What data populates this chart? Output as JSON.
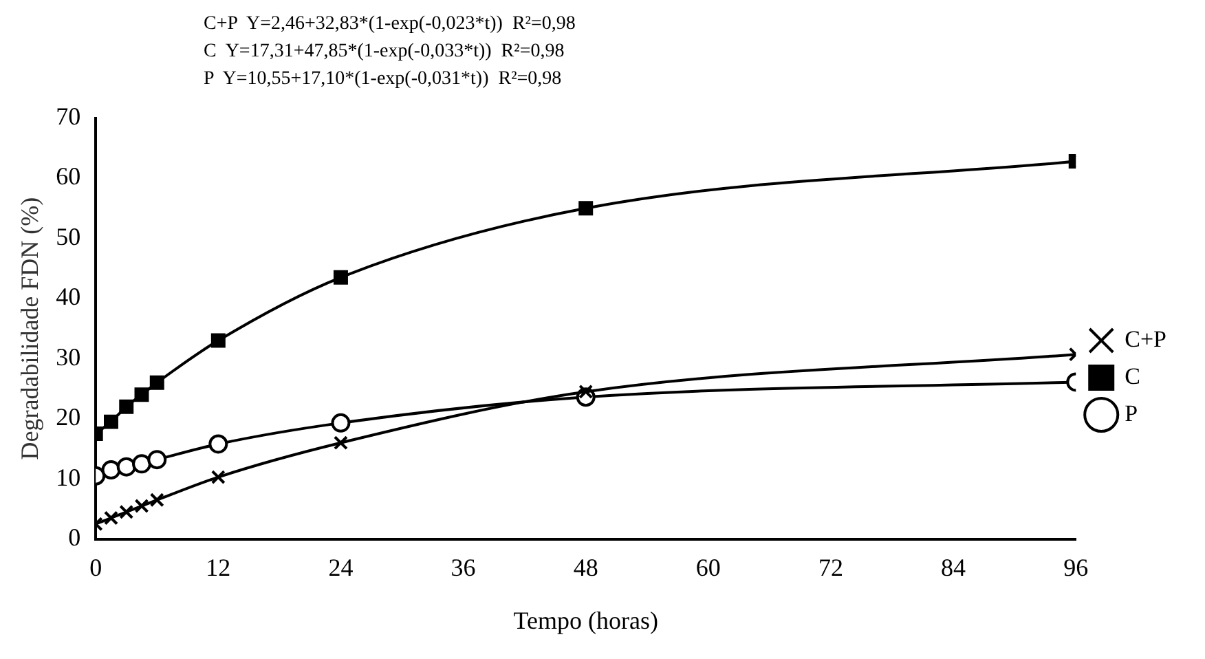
{
  "chart_data": {
    "type": "line",
    "xlabel": "Tempo (horas)",
    "ylabel": "Degradabilidade FDN (%)",
    "annotations": [
      "C+P  Y=2,46+32,83*(1-exp(-0,023*t))  R²=0,98",
      "C  Y=17,31+47,85*(1-exp(-0,033*t))  R²=0,98",
      "P  Y=10,55+17,10*(1-exp(-0,031*t))  R²=0,98"
    ],
    "x": [
      0,
      1.5,
      3,
      4.5,
      6,
      12,
      24,
      48,
      96
    ],
    "series": [
      {
        "name": "C+P",
        "color": "#000000",
        "marker": "cross",
        "values": [
          2.5,
          3.5,
          4.5,
          5.5,
          6.5,
          10.3,
          16,
          24.5,
          30.7
        ]
      },
      {
        "name": "C",
        "color": "#000000",
        "marker": "square",
        "values": [
          17.5,
          19.5,
          22,
          24,
          26,
          33,
          43.5,
          55,
          62.8
        ]
      },
      {
        "name": "P",
        "color": "#000000",
        "marker": "circle",
        "values": [
          10.5,
          11.5,
          12,
          12.5,
          13.2,
          15.8,
          19.3,
          23.6,
          26.1
        ]
      }
    ],
    "xlim": [
      0,
      96
    ],
    "xticks": [
      0,
      12,
      24,
      36,
      48,
      60,
      72,
      84,
      96
    ],
    "ylim": [
      0,
      70
    ],
    "yticks": [
      0,
      10,
      20,
      30,
      40,
      50,
      60,
      70
    ],
    "grid": false,
    "legend": "right",
    "line_style": "solid"
  }
}
